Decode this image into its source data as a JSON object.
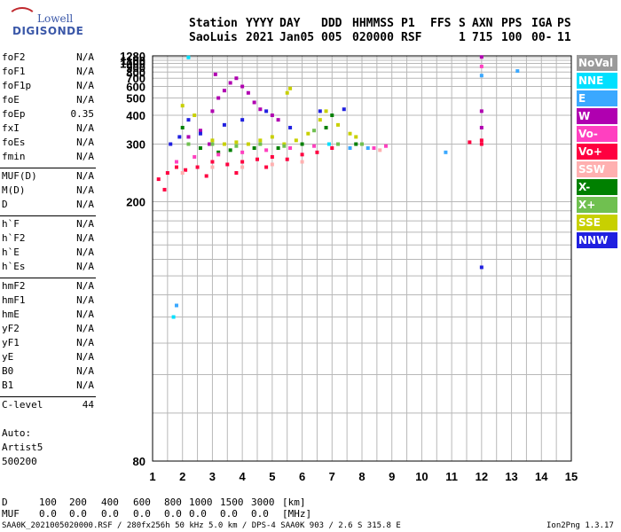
{
  "logo": {
    "brand": "Lowell",
    "product": "DIGISONDE"
  },
  "header": {
    "station_label": "Station",
    "station": "SaoLuis",
    "year_label": "YYYY",
    "year": "2021",
    "day_label": "DAY",
    "day": "Jan05",
    "ddd_label": "DDD",
    "ddd": "005",
    "time_label": "HHMMSS",
    "time": "020000",
    "p1_label": "P1",
    "p1": "RSF",
    "ffs_label": "FFS",
    "ffs": "",
    "s_label": "S",
    "s": "1",
    "axn_label": "AXN",
    "axn": "715",
    "pps_label": "PPS",
    "pps": "100",
    "iga_label": "IGA",
    "iga": "00-",
    "ps_label": "PS",
    "ps": "11"
  },
  "params": [
    {
      "label": "foF2",
      "value": "N/A"
    },
    {
      "label": "foF1",
      "value": "N/A"
    },
    {
      "label": "foF1p",
      "value": "N/A"
    },
    {
      "label": "foE",
      "value": "N/A"
    },
    {
      "label": "foEp",
      "value": "0.35"
    },
    {
      "label": "fxI",
      "value": "N/A"
    },
    {
      "label": "foEs",
      "value": "N/A"
    },
    {
      "label": "fmin",
      "value": "N/A"
    },
    {
      "label": "MUF(D)",
      "value": "N/A"
    },
    {
      "label": "M(D)",
      "value": "N/A"
    },
    {
      "label": "D",
      "value": "N/A"
    },
    {
      "label": "h`F",
      "value": "N/A"
    },
    {
      "label": "h`F2",
      "value": "N/A"
    },
    {
      "label": "h`E",
      "value": "N/A"
    },
    {
      "label": "h`Es",
      "value": "N/A"
    },
    {
      "label": "hmF2",
      "value": "N/A"
    },
    {
      "label": "hmF1",
      "value": "N/A"
    },
    {
      "label": "hmE",
      "value": "N/A"
    },
    {
      "label": "yF2",
      "value": "N/A"
    },
    {
      "label": "yF1",
      "value": "N/A"
    },
    {
      "label": "yE",
      "value": "N/A"
    },
    {
      "label": "B0",
      "value": "N/A"
    },
    {
      "label": "B1",
      "value": "N/A"
    },
    {
      "label": "C-level",
      "value": "44"
    }
  ],
  "auto": {
    "label": "Auto:",
    "software": "Artist5",
    "version": "500200"
  },
  "legend": [
    {
      "label": "NoVal",
      "color": "#9a9a9a"
    },
    {
      "label": "NNE",
      "color": "#00e0ff"
    },
    {
      "label": "E",
      "color": "#3aa8ff"
    },
    {
      "label": "W",
      "color": "#b000b0"
    },
    {
      "label": "Vo-",
      "color": "#ff40c0"
    },
    {
      "label": "Vo+",
      "color": "#ff0040"
    },
    {
      "label": "SSW",
      "color": "#ffb0b0"
    },
    {
      "label": "X-",
      "color": "#008000"
    },
    {
      "label": "X+",
      "color": "#70c050"
    },
    {
      "label": "SSE",
      "color": "#c8d000"
    },
    {
      "label": "NNW",
      "color": "#2020e0"
    }
  ],
  "chart_data": {
    "type": "scatter",
    "title": "",
    "xlabel": "",
    "ylabel": "",
    "xlim": [
      1,
      15
    ],
    "ylim": [
      80,
      1280
    ],
    "y_scale": "reciprocal",
    "x_ticks": [
      1,
      2,
      3,
      4,
      5,
      6,
      7,
      8,
      9,
      10,
      11,
      12,
      13,
      14,
      15
    ],
    "y_ticks": [
      80,
      200,
      300,
      400,
      500,
      600,
      700,
      800,
      900,
      1000,
      1100,
      1280
    ],
    "grid": true,
    "series": [
      {
        "name": "Vo+",
        "points": [
          [
            1.2,
            230
          ],
          [
            1.5,
            240
          ],
          [
            1.8,
            250
          ],
          [
            2.1,
            245
          ],
          [
            2.5,
            250
          ],
          [
            3.0,
            260
          ],
          [
            3.5,
            255
          ],
          [
            4.0,
            260
          ],
          [
            4.5,
            265
          ],
          [
            5.0,
            270
          ],
          [
            5.5,
            265
          ],
          [
            6.0,
            275
          ],
          [
            6.5,
            280
          ],
          [
            7.0,
            290
          ],
          [
            1.4,
            215
          ],
          [
            2.8,
            235
          ],
          [
            3.8,
            240
          ],
          [
            4.8,
            250
          ],
          [
            12.0,
            300
          ],
          [
            12.0,
            310
          ],
          [
            11.6,
            305
          ]
        ]
      },
      {
        "name": "W",
        "points": [
          [
            2.2,
            320
          ],
          [
            2.6,
            340
          ],
          [
            3.0,
            420
          ],
          [
            3.2,
            500
          ],
          [
            3.4,
            560
          ],
          [
            3.6,
            640
          ],
          [
            3.8,
            700
          ],
          [
            4.0,
            600
          ],
          [
            4.2,
            540
          ],
          [
            4.4,
            470
          ],
          [
            4.6,
            430
          ],
          [
            5.0,
            400
          ],
          [
            5.2,
            380
          ],
          [
            3.1,
            760
          ],
          [
            2.9,
            300
          ],
          [
            12.0,
            1230
          ],
          [
            12.0,
            420
          ],
          [
            12.0,
            350
          ]
        ]
      },
      {
        "name": "SSE",
        "points": [
          [
            2.0,
            450
          ],
          [
            2.4,
            400
          ],
          [
            3.0,
            310
          ],
          [
            3.4,
            300
          ],
          [
            3.8,
            305
          ],
          [
            4.2,
            300
          ],
          [
            4.6,
            310
          ],
          [
            5.0,
            320
          ],
          [
            5.4,
            300
          ],
          [
            5.8,
            310
          ],
          [
            6.2,
            330
          ],
          [
            6.6,
            380
          ],
          [
            6.8,
            420
          ],
          [
            7.2,
            360
          ],
          [
            7.6,
            330
          ],
          [
            7.8,
            320
          ],
          [
            5.5,
            540
          ],
          [
            5.6,
            580
          ]
        ]
      },
      {
        "name": "X-",
        "points": [
          [
            2.0,
            350
          ],
          [
            2.6,
            290
          ],
          [
            3.2,
            280
          ],
          [
            3.6,
            285
          ],
          [
            4.4,
            290
          ],
          [
            5.2,
            290
          ],
          [
            6.0,
            300
          ],
          [
            6.8,
            350
          ],
          [
            7.0,
            400
          ],
          [
            7.8,
            300
          ]
        ]
      },
      {
        "name": "X+",
        "points": [
          [
            2.2,
            300
          ],
          [
            3.0,
            300
          ],
          [
            3.8,
            295
          ],
          [
            4.6,
            300
          ],
          [
            5.4,
            295
          ],
          [
            6.4,
            340
          ],
          [
            7.2,
            300
          ],
          [
            8.0,
            300
          ]
        ]
      },
      {
        "name": "NNW",
        "points": [
          [
            1.6,
            300
          ],
          [
            1.9,
            320
          ],
          [
            2.2,
            380
          ],
          [
            2.6,
            330
          ],
          [
            3.4,
            360
          ],
          [
            4.0,
            380
          ],
          [
            4.8,
            420
          ],
          [
            5.6,
            350
          ],
          [
            6.6,
            420
          ],
          [
            7.4,
            430
          ],
          [
            12.0,
            145
          ]
        ]
      },
      {
        "name": "Vo-",
        "points": [
          [
            1.8,
            260
          ],
          [
            2.4,
            270
          ],
          [
            3.2,
            275
          ],
          [
            4.0,
            280
          ],
          [
            4.8,
            285
          ],
          [
            5.6,
            290
          ],
          [
            6.4,
            295
          ],
          [
            7.6,
            290
          ],
          [
            8.4,
            290
          ],
          [
            8.8,
            295
          ],
          [
            12.0,
            920
          ]
        ]
      },
      {
        "name": "E",
        "points": [
          [
            1.8,
            125
          ],
          [
            7.6,
            290
          ],
          [
            8.2,
            290
          ],
          [
            10.8,
            280
          ],
          [
            12.0,
            740
          ],
          [
            13.2,
            820
          ]
        ]
      },
      {
        "name": "NNE",
        "points": [
          [
            2.2,
            1210
          ],
          [
            1.7,
            120
          ],
          [
            6.9,
            300
          ]
        ]
      },
      {
        "name": "SSW",
        "points": [
          [
            2.0,
            240
          ],
          [
            3.0,
            250
          ],
          [
            4.0,
            250
          ],
          [
            5.0,
            255
          ],
          [
            6.0,
            260
          ],
          [
            8.6,
            285
          ]
        ]
      }
    ]
  },
  "footer": {
    "d_label": "D",
    "d_values": [
      "100",
      "200",
      "400",
      "600",
      "800",
      "1000",
      "1500",
      "3000"
    ],
    "d_unit": "[km]",
    "muf_label": "MUF",
    "muf_values": [
      "0.0",
      "0.0",
      "0.0",
      "0.0",
      "0.0",
      "0.0",
      "0.0",
      "0.0"
    ],
    "muf_unit": "[MHz]",
    "file_info": "SAA0K_2021005020000.RSF / 280fx256h 50 kHz 5.0 km / DPS-4 SAA0K 903 / 2.6 S 315.8 E",
    "version": "Ion2Png 1.3.17"
  }
}
